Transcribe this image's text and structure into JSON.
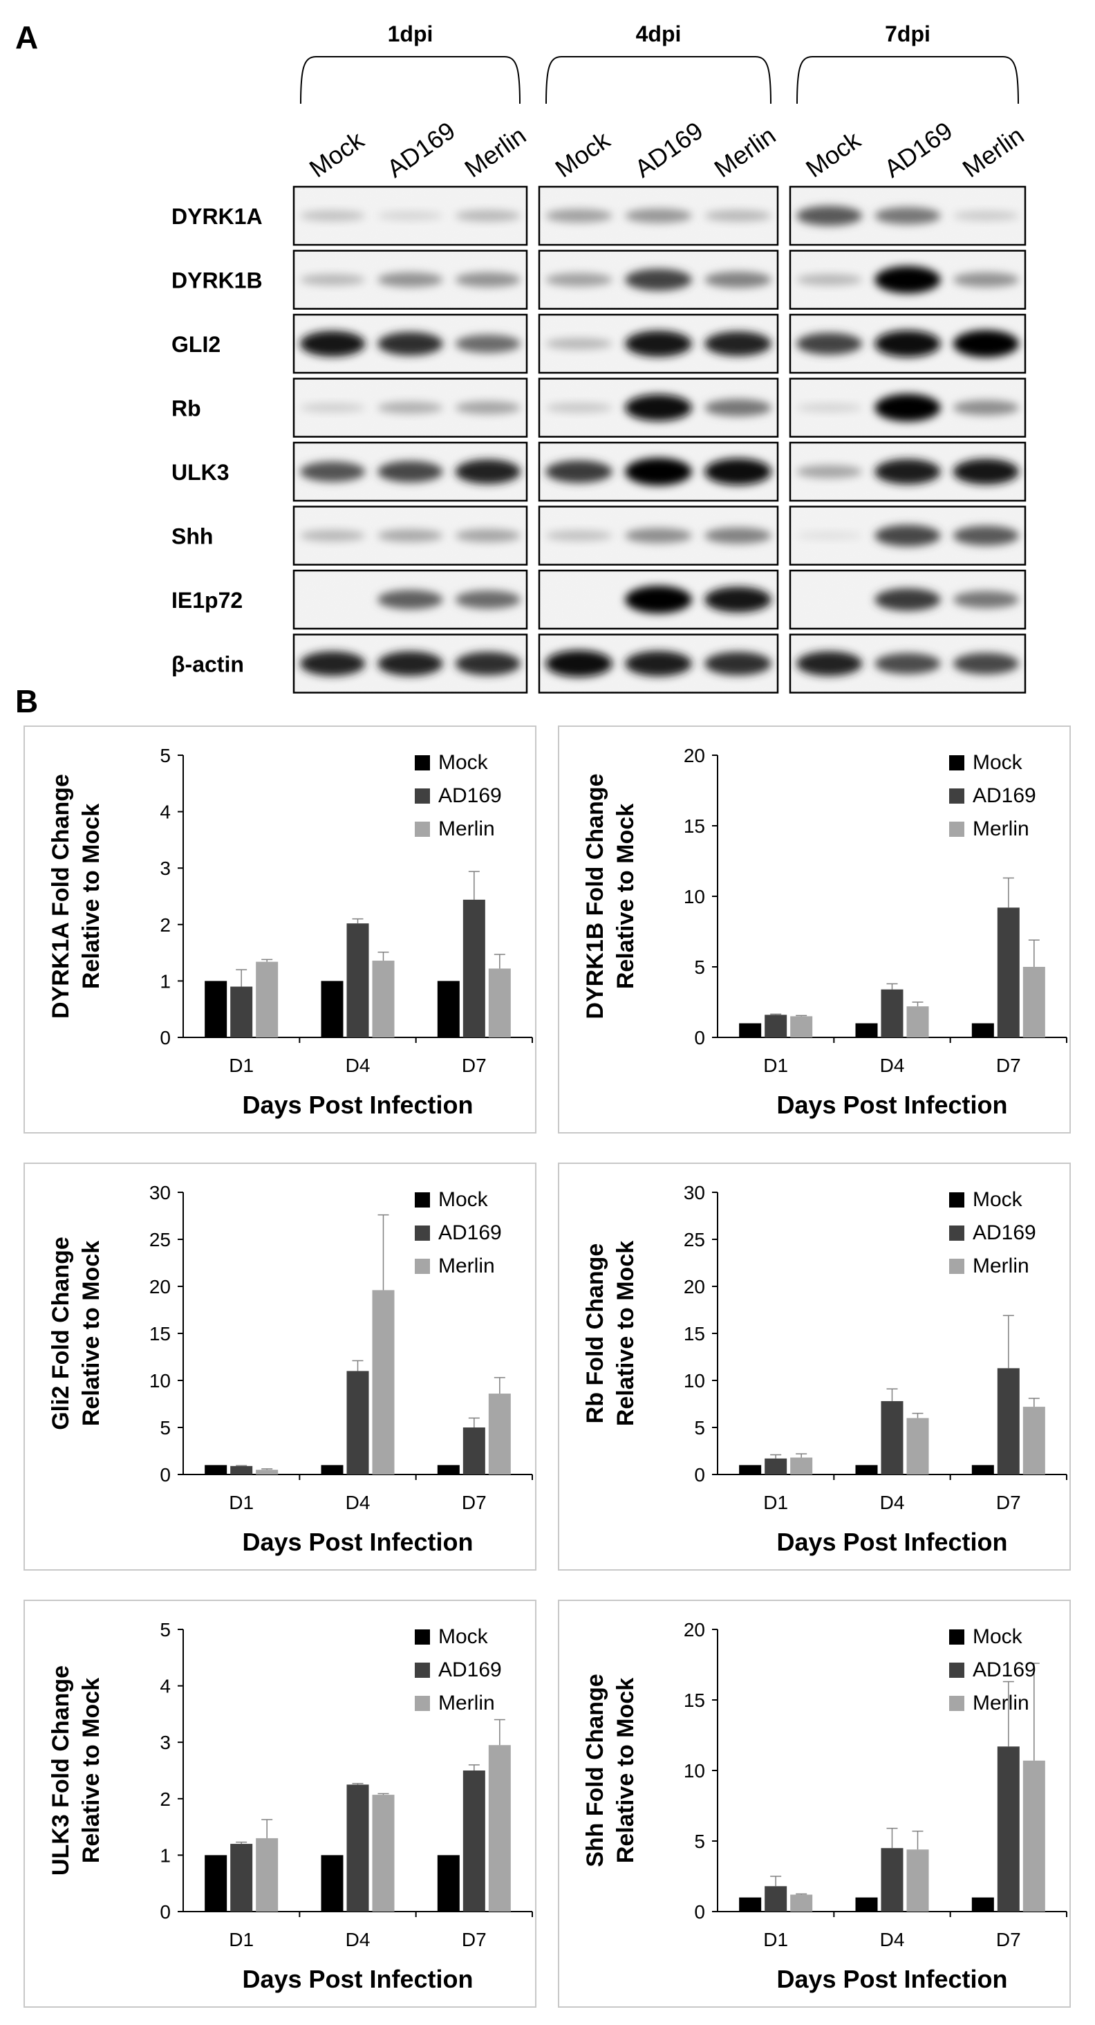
{
  "panel_a": {
    "label": "A",
    "timepoints": [
      "1dpi",
      "4dpi",
      "7dpi"
    ],
    "lanes": [
      "Mock",
      "AD169",
      "Merlin"
    ],
    "proteins": [
      "DYRK1A",
      "DYRK1B",
      "GLI2",
      "Rb",
      "ULK3",
      "Shh",
      "IE1p72",
      "β-actin"
    ],
    "band_intensity": [
      [
        [
          0.18,
          0.1,
          0.22
        ],
        [
          0.32,
          0.36,
          0.22
        ],
        [
          0.62,
          0.5,
          0.14
        ]
      ],
      [
        [
          0.22,
          0.38,
          0.38
        ],
        [
          0.32,
          0.72,
          0.45
        ],
        [
          0.22,
          0.98,
          0.38
        ]
      ],
      [
        [
          0.9,
          0.8,
          0.55
        ],
        [
          0.22,
          0.92,
          0.85
        ],
        [
          0.72,
          0.95,
          0.98
        ]
      ],
      [
        [
          0.12,
          0.25,
          0.3
        ],
        [
          0.15,
          0.95,
          0.5
        ],
        [
          0.1,
          1.0,
          0.4
        ]
      ],
      [
        [
          0.65,
          0.7,
          0.85
        ],
        [
          0.75,
          1.0,
          0.95
        ],
        [
          0.3,
          0.88,
          0.9
        ]
      ],
      [
        [
          0.22,
          0.28,
          0.3
        ],
        [
          0.18,
          0.4,
          0.45
        ],
        [
          0.05,
          0.7,
          0.62
        ]
      ],
      [
        [
          0.0,
          0.6,
          0.55
        ],
        [
          0.0,
          1.0,
          0.9
        ],
        [
          0.0,
          0.75,
          0.5
        ]
      ],
      [
        [
          0.85,
          0.85,
          0.8
        ],
        [
          0.95,
          0.88,
          0.8
        ],
        [
          0.85,
          0.68,
          0.7
        ]
      ]
    ]
  },
  "panel_b": {
    "label": "B"
  },
  "colors": {
    "Mock": "#000000",
    "AD169": "#404040",
    "Merlin": "#a6a6a6",
    "frame": "#c8c8c8"
  },
  "chart_data": [
    {
      "type": "bar",
      "categories": [
        "D1",
        "D4",
        "D7"
      ],
      "series": [
        {
          "name": "Mock",
          "values": [
            1,
            1,
            1
          ],
          "errors": [
            0,
            0,
            0
          ]
        },
        {
          "name": "AD169",
          "values": [
            0.9,
            2.02,
            2.44
          ],
          "errors": [
            0.3,
            0.08,
            0.5
          ]
        },
        {
          "name": "Merlin",
          "values": [
            1.34,
            1.36,
            1.22
          ],
          "errors": [
            0.04,
            0.15,
            0.25
          ]
        }
      ],
      "xlabel": "Days Post Infection",
      "ylabel": [
        "DYRK1A Fold Change",
        "Relative to Mock"
      ],
      "ylim": [
        0,
        5
      ],
      "yticks": [
        0,
        1,
        2,
        3,
        4,
        5
      ],
      "legend_position": "top-right",
      "grid": false
    },
    {
      "type": "bar",
      "categories": [
        "D1",
        "D4",
        "D7"
      ],
      "series": [
        {
          "name": "Mock",
          "values": [
            1,
            1,
            1
          ],
          "errors": [
            0,
            0,
            0
          ]
        },
        {
          "name": "AD169",
          "values": [
            1.6,
            3.4,
            9.2
          ],
          "errors": [
            0.05,
            0.4,
            2.1
          ]
        },
        {
          "name": "Merlin",
          "values": [
            1.5,
            2.2,
            5.0
          ],
          "errors": [
            0.05,
            0.3,
            1.9
          ]
        }
      ],
      "xlabel": "Days Post Infection",
      "ylabel": [
        "DYRK1B Fold Change",
        "Relative to Mock"
      ],
      "ylim": [
        0,
        20
      ],
      "yticks": [
        0,
        5,
        10,
        15,
        20
      ],
      "legend_position": "top-right",
      "grid": false
    },
    {
      "type": "bar",
      "categories": [
        "D1",
        "D4",
        "D7"
      ],
      "series": [
        {
          "name": "Mock",
          "values": [
            1,
            1,
            1
          ],
          "errors": [
            0,
            0,
            0
          ]
        },
        {
          "name": "AD169",
          "values": [
            0.9,
            11.0,
            5.0
          ],
          "errors": [
            0.05,
            1.1,
            1.0
          ]
        },
        {
          "name": "Merlin",
          "values": [
            0.5,
            19.6,
            8.6
          ],
          "errors": [
            0.1,
            8.0,
            1.7
          ]
        }
      ],
      "xlabel": "Days Post Infection",
      "ylabel": [
        "Gli2 Fold Change",
        "Relative to Mock"
      ],
      "ylim": [
        0,
        30
      ],
      "yticks": [
        0,
        5,
        10,
        15,
        20,
        25,
        30
      ],
      "legend_position": "top-right",
      "grid": false
    },
    {
      "type": "bar",
      "categories": [
        "D1",
        "D4",
        "D7"
      ],
      "series": [
        {
          "name": "Mock",
          "values": [
            1,
            1,
            1
          ],
          "errors": [
            0,
            0,
            0
          ]
        },
        {
          "name": "AD169",
          "values": [
            1.7,
            7.8,
            11.3
          ],
          "errors": [
            0.4,
            1.3,
            5.6
          ]
        },
        {
          "name": "Merlin",
          "values": [
            1.8,
            6.0,
            7.2
          ],
          "errors": [
            0.4,
            0.5,
            0.9
          ]
        }
      ],
      "xlabel": "Days Post Infection",
      "ylabel": [
        "Rb Fold Change",
        "Relative to Mock"
      ],
      "ylim": [
        0,
        30
      ],
      "yticks": [
        0,
        5,
        10,
        15,
        20,
        25,
        30
      ],
      "legend_position": "top-right",
      "grid": false
    },
    {
      "type": "bar",
      "categories": [
        "D1",
        "D4",
        "D7"
      ],
      "series": [
        {
          "name": "Mock",
          "values": [
            1,
            1,
            1
          ],
          "errors": [
            0,
            0,
            0
          ]
        },
        {
          "name": "AD169",
          "values": [
            1.2,
            2.25,
            2.5
          ],
          "errors": [
            0.03,
            0.02,
            0.1
          ]
        },
        {
          "name": "Merlin",
          "values": [
            1.3,
            2.07,
            2.95
          ],
          "errors": [
            0.33,
            0.02,
            0.45
          ]
        }
      ],
      "xlabel": "Days Post Infection",
      "ylabel": [
        "ULK3 Fold Change",
        "Relative to Mock"
      ],
      "ylim": [
        0,
        5
      ],
      "yticks": [
        0,
        1,
        2,
        3,
        4,
        5
      ],
      "legend_position": "top-right",
      "grid": false
    },
    {
      "type": "bar",
      "categories": [
        "D1",
        "D4",
        "D7"
      ],
      "series": [
        {
          "name": "Mock",
          "values": [
            1,
            1,
            1
          ],
          "errors": [
            0,
            0,
            0
          ]
        },
        {
          "name": "AD169",
          "values": [
            1.8,
            4.5,
            11.7
          ],
          "errors": [
            0.7,
            1.4,
            4.6
          ]
        },
        {
          "name": "Merlin",
          "values": [
            1.2,
            4.4,
            10.7
          ],
          "errors": [
            0.05,
            1.3,
            6.9
          ]
        }
      ],
      "xlabel": "Days Post Infection",
      "ylabel": [
        "Shh Fold Change",
        "Relative to Mock"
      ],
      "ylim": [
        0,
        20
      ],
      "yticks": [
        0,
        5,
        10,
        15,
        20
      ],
      "legend_position": "top-right",
      "grid": false
    }
  ]
}
